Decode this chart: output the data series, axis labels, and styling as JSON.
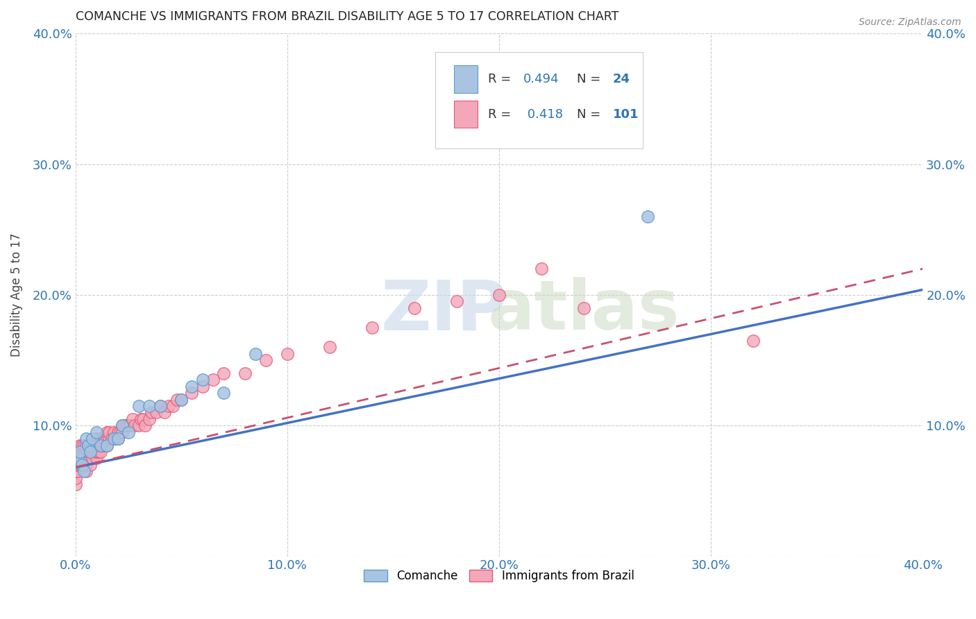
{
  "title": "COMANCHE VS IMMIGRANTS FROM BRAZIL DISABILITY AGE 5 TO 17 CORRELATION CHART",
  "source": "Source: ZipAtlas.com",
  "ylabel": "Disability Age 5 to 17",
  "xlim": [
    0.0,
    0.4
  ],
  "ylim": [
    0.0,
    0.4
  ],
  "xticks": [
    0.0,
    0.1,
    0.2,
    0.3,
    0.4
  ],
  "yticks": [
    0.0,
    0.1,
    0.2,
    0.3,
    0.4
  ],
  "xtick_labels": [
    "0.0%",
    "10.0%",
    "20.0%",
    "30.0%",
    "40.0%"
  ],
  "ytick_labels": [
    "",
    "10.0%",
    "20.0%",
    "30.0%",
    "40.0%"
  ],
  "background_color": "#ffffff",
  "grid_color": "#cccccc",
  "comanche_color": "#a8c4e0",
  "comanche_edge_color": "#5b9bd5",
  "brazil_color": "#f4a7b9",
  "brazil_edge_color": "#e05c7a",
  "comanche_R": 0.494,
  "comanche_N": 24,
  "brazil_R": 0.418,
  "brazil_N": 101,
  "comanche_line_color": "#4472c4",
  "brazil_line_color": "#c9516e",
  "legend_R_color": "#2e75b6",
  "comanche_line_intercept": 0.068,
  "comanche_line_slope": 0.34,
  "brazil_line_intercept": 0.068,
  "brazil_line_slope": 0.38,
  "comanche_x": [
    0.001,
    0.002,
    0.003,
    0.004,
    0.005,
    0.006,
    0.007,
    0.008,
    0.01,
    0.012,
    0.015,
    0.018,
    0.02,
    0.022,
    0.025,
    0.03,
    0.035,
    0.04,
    0.05,
    0.055,
    0.06,
    0.07,
    0.085,
    0.27
  ],
  "comanche_y": [
    0.075,
    0.08,
    0.07,
    0.065,
    0.09,
    0.085,
    0.08,
    0.09,
    0.095,
    0.085,
    0.085,
    0.09,
    0.09,
    0.1,
    0.095,
    0.115,
    0.115,
    0.115,
    0.12,
    0.13,
    0.135,
    0.125,
    0.155,
    0.26
  ],
  "brazil_x": [
    0.0,
    0.0,
    0.0,
    0.0,
    0.0,
    0.0,
    0.0,
    0.0,
    0.0,
    0.001,
    0.001,
    0.001,
    0.001,
    0.002,
    0.002,
    0.002,
    0.002,
    0.003,
    0.003,
    0.003,
    0.003,
    0.004,
    0.004,
    0.004,
    0.005,
    0.005,
    0.005,
    0.005,
    0.005,
    0.006,
    0.006,
    0.006,
    0.007,
    0.007,
    0.007,
    0.008,
    0.008,
    0.008,
    0.009,
    0.009,
    0.01,
    0.01,
    0.01,
    0.01,
    0.011,
    0.011,
    0.012,
    0.012,
    0.012,
    0.013,
    0.013,
    0.014,
    0.014,
    0.015,
    0.015,
    0.015,
    0.016,
    0.016,
    0.017,
    0.018,
    0.018,
    0.019,
    0.02,
    0.02,
    0.021,
    0.022,
    0.022,
    0.023,
    0.024,
    0.025,
    0.026,
    0.027,
    0.028,
    0.03,
    0.031,
    0.032,
    0.033,
    0.035,
    0.036,
    0.038,
    0.04,
    0.042,
    0.044,
    0.046,
    0.048,
    0.05,
    0.055,
    0.06,
    0.065,
    0.07,
    0.08,
    0.09,
    0.1,
    0.12,
    0.14,
    0.16,
    0.18,
    0.2,
    0.22,
    0.24,
    0.32
  ],
  "brazil_y": [
    0.055,
    0.06,
    0.065,
    0.07,
    0.07,
    0.075,
    0.075,
    0.075,
    0.08,
    0.065,
    0.07,
    0.075,
    0.08,
    0.07,
    0.075,
    0.08,
    0.085,
    0.07,
    0.075,
    0.08,
    0.085,
    0.075,
    0.08,
    0.085,
    0.065,
    0.07,
    0.075,
    0.08,
    0.085,
    0.075,
    0.08,
    0.085,
    0.07,
    0.08,
    0.085,
    0.075,
    0.08,
    0.085,
    0.08,
    0.085,
    0.075,
    0.08,
    0.085,
    0.09,
    0.08,
    0.085,
    0.08,
    0.085,
    0.09,
    0.085,
    0.09,
    0.085,
    0.09,
    0.085,
    0.09,
    0.095,
    0.09,
    0.095,
    0.09,
    0.09,
    0.095,
    0.09,
    0.09,
    0.095,
    0.095,
    0.1,
    0.095,
    0.1,
    0.1,
    0.1,
    0.1,
    0.105,
    0.1,
    0.1,
    0.105,
    0.105,
    0.1,
    0.105,
    0.11,
    0.11,
    0.115,
    0.11,
    0.115,
    0.115,
    0.12,
    0.12,
    0.125,
    0.13,
    0.135,
    0.14,
    0.14,
    0.15,
    0.155,
    0.16,
    0.175,
    0.19,
    0.195,
    0.2,
    0.22,
    0.19,
    0.165
  ]
}
